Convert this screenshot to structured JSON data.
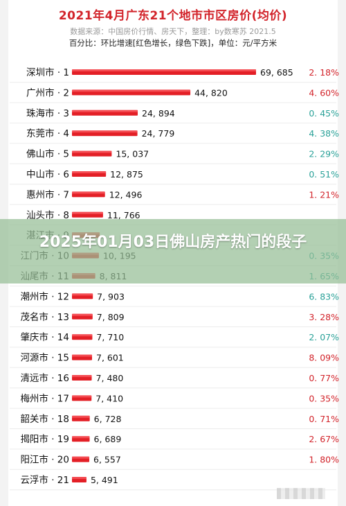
{
  "title": "2021年4月广东21个地市市区房价(均价)",
  "source": "数据来源：中国房价行情、房天下，整理：by数寒苏 2021.5",
  "note": "百分比：环比增速[红色增长，绿色下跌]，单位：元/平方米",
  "banner_text": "2025年01月03日佛山房产热门的段子",
  "colors": {
    "bar": "#e31f26",
    "title": "#d2232a",
    "up": "#d2232a",
    "down": "#2aa198"
  },
  "chart_data": {
    "type": "bar",
    "orientation": "horizontal",
    "categories": [
      "深圳市 · 1",
      "广州市 · 2",
      "珠海市 · 3",
      "东莞市 · 4",
      "佛山市 · 5",
      "中山市 · 6",
      "惠州市 · 7",
      "汕头市 · 8",
      "湛江市 · 9",
      "江门市 · 10",
      "汕尾市 · 11",
      "潮州市 · 12",
      "茂名市 · 13",
      "肇庆市 · 14",
      "河源市 · 15",
      "清远市 · 16",
      "梅州市 · 17",
      "韶关市 · 18",
      "揭阳市 · 19",
      "阳江市 · 20",
      "云浮市 · 21"
    ],
    "values": [
      69685,
      44820,
      24894,
      24779,
      15037,
      12875,
      12496,
      11766,
      10500,
      10195,
      8811,
      7903,
      7809,
      7710,
      7601,
      7480,
      7410,
      6728,
      6689,
      6557,
      5491
    ],
    "value_labels": [
      "69, 685",
      "44, 820",
      "24, 894",
      "24, 779",
      "15, 037",
      "12, 875",
      "12, 496",
      "11, 766",
      "",
      "10, 195",
      "8, 811",
      "7, 903",
      "7, 809",
      "7, 710",
      "7, 601",
      "7, 480",
      "7, 410",
      "6, 728",
      "6, 689",
      "6, 557",
      "5, 491"
    ],
    "changes": [
      "2. 18%",
      "4. 60%",
      "0. 45%",
      "4. 38%",
      "2. 29%",
      "0. 51%",
      "1. 21%",
      "",
      "",
      "0. 35%",
      "1. 65%",
      "6. 83%",
      "3. 28%",
      "2. 07%",
      "8. 09%",
      "0. 77%",
      "0. 35%",
      "0. 71%",
      "2. 67%",
      "1. 80%",
      ""
    ],
    "change_direction": [
      "up",
      "up",
      "down",
      "down",
      "down",
      "down",
      "up",
      "",
      "",
      "down",
      "down",
      "down",
      "up",
      "down",
      "up",
      "up",
      "up",
      "up",
      "up",
      "up",
      ""
    ],
    "xlim": [
      0,
      70000
    ]
  }
}
